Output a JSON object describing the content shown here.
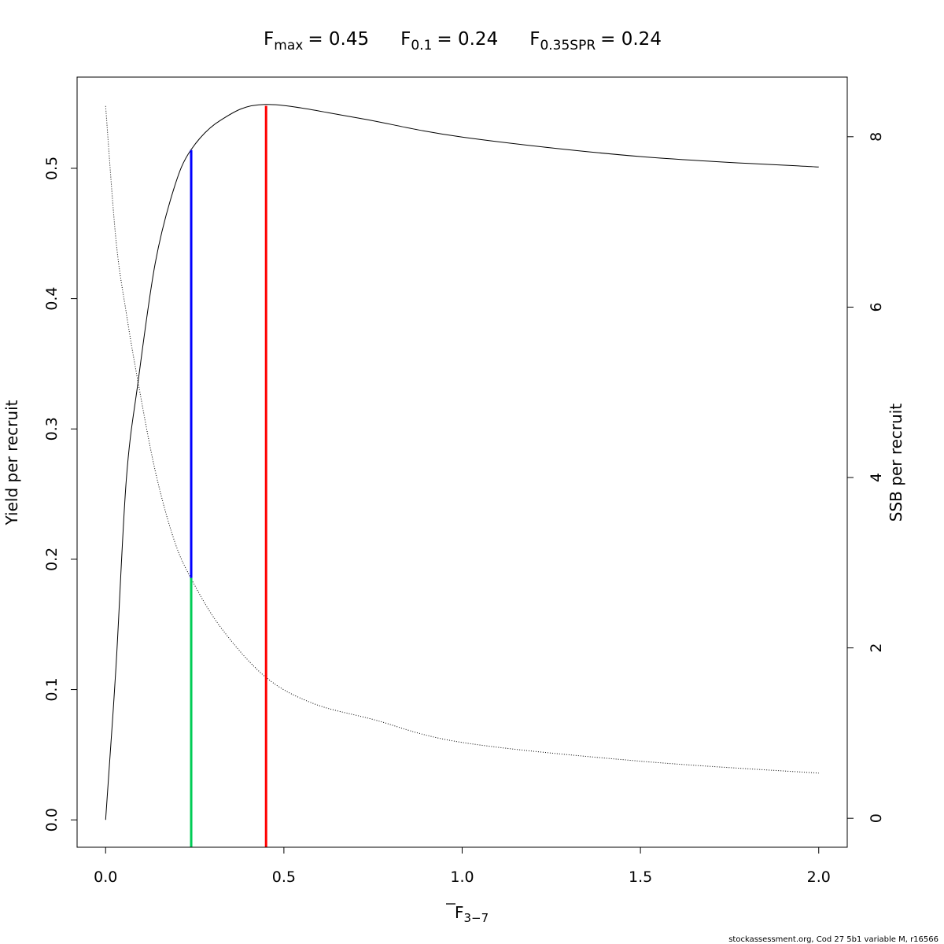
{
  "chart_data": {
    "type": "line",
    "title": {
      "fmax": {
        "base": "F",
        "sub": "max",
        "value": "= 0.45"
      },
      "f01": {
        "base": "F",
        "sub": "0.1",
        "value": "= 0.24"
      },
      "f35spr": {
        "base": "F",
        "sub": "0.35SPR",
        "value": "= 0.24"
      }
    },
    "xlabel": {
      "base": "F",
      "sub": "3−7"
    },
    "ylabel_left": "Yield per recruit",
    "ylabel_right": "SSB per recruit",
    "xlim": [
      -0.08,
      2.08
    ],
    "ylim_left": [
      -0.021,
      0.57
    ],
    "ylim_right": [
      -0.34,
      8.7
    ],
    "x_ticks": [
      "0.0",
      "0.5",
      "1.0",
      "1.5",
      "2.0"
    ],
    "y_left_ticks": [
      "0.0",
      "0.1",
      "0.2",
      "0.3",
      "0.4",
      "0.5"
    ],
    "y_right_ticks": [
      "0",
      "2",
      "4",
      "6",
      "8"
    ],
    "grid": false,
    "series": [
      {
        "axis": "left",
        "style": "solid",
        "color": "#000000",
        "x": [
          0,
          0.029,
          0.058,
          0.091,
          0.139,
          0.191,
          0.239,
          0.323,
          0.448,
          0.7,
          1.0,
          1.5,
          2.0
        ],
        "y": [
          0,
          0.117,
          0.261,
          0.336,
          0.427,
          0.484,
          0.514,
          0.537,
          0.549,
          0.539,
          0.524,
          0.509,
          0.501
        ]
      },
      {
        "axis": "right",
        "style": "dotted",
        "color": "#000000",
        "x": [
          0,
          0.029,
          0.058,
          0.091,
          0.139,
          0.191,
          0.239,
          0.323,
          0.448,
          0.581,
          0.75,
          1.0,
          1.5,
          2.0
        ],
        "y": [
          8.36,
          6.79,
          5.93,
          5.12,
          4.08,
          3.28,
          2.82,
          2.24,
          1.66,
          1.35,
          1.16,
          0.89,
          0.67,
          0.53
        ]
      }
    ],
    "reference_lines": [
      {
        "name": "fmax",
        "x": 0.45,
        "color": "#ff0000",
        "from": "bottom",
        "to_ypr": 0.548
      },
      {
        "name": "f01",
        "x": 0.24,
        "color": "#0000ff",
        "from_ssb": 2.82,
        "to_ypr": 0.514
      },
      {
        "name": "f35spr",
        "x": 0.24,
        "color": "#00cc55",
        "from": "bottom",
        "to_ssb": 2.82
      }
    ]
  },
  "footer": "stockassessment.org, Cod  27  5b1  variable  M, r16566"
}
